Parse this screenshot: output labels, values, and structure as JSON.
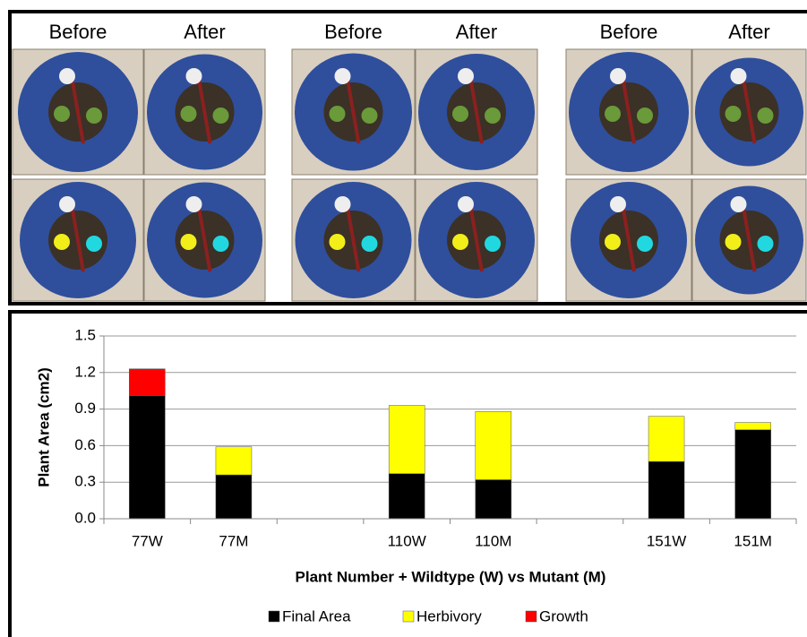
{
  "photo_headers": [
    "Before",
    "After",
    "Before",
    "After",
    "Before",
    "After"
  ],
  "chart_data": {
    "type": "bar",
    "stacked": true,
    "y_label": "Plant Area (cm2)",
    "x_label": "Plant Number + Wildtype (W) vs Mutant (M)",
    "categories": [
      "77W",
      "77M",
      null,
      "110W",
      "110M",
      null,
      "151W",
      "151M"
    ],
    "series": [
      {
        "name": "Final Area",
        "color": "#000000",
        "values": [
          1.01,
          0.36,
          null,
          0.37,
          0.32,
          null,
          0.47,
          0.73
        ]
      },
      {
        "name": "Herbivory",
        "color": "#ffff00",
        "values": [
          0,
          0.23,
          null,
          0.56,
          0.56,
          null,
          0.37,
          0.06
        ]
      },
      {
        "name": "Growth",
        "color": "#ff0000",
        "values": [
          0.22,
          0,
          null,
          0,
          0,
          null,
          0,
          0
        ]
      }
    ],
    "ylim": [
      0,
      1.5
    ],
    "yticks": [
      {
        "value": 0,
        "label": "0.0"
      },
      0.3,
      0.6,
      0.9,
      1.2,
      1.5
    ],
    "grid": true,
    "legend": "bottom"
  }
}
